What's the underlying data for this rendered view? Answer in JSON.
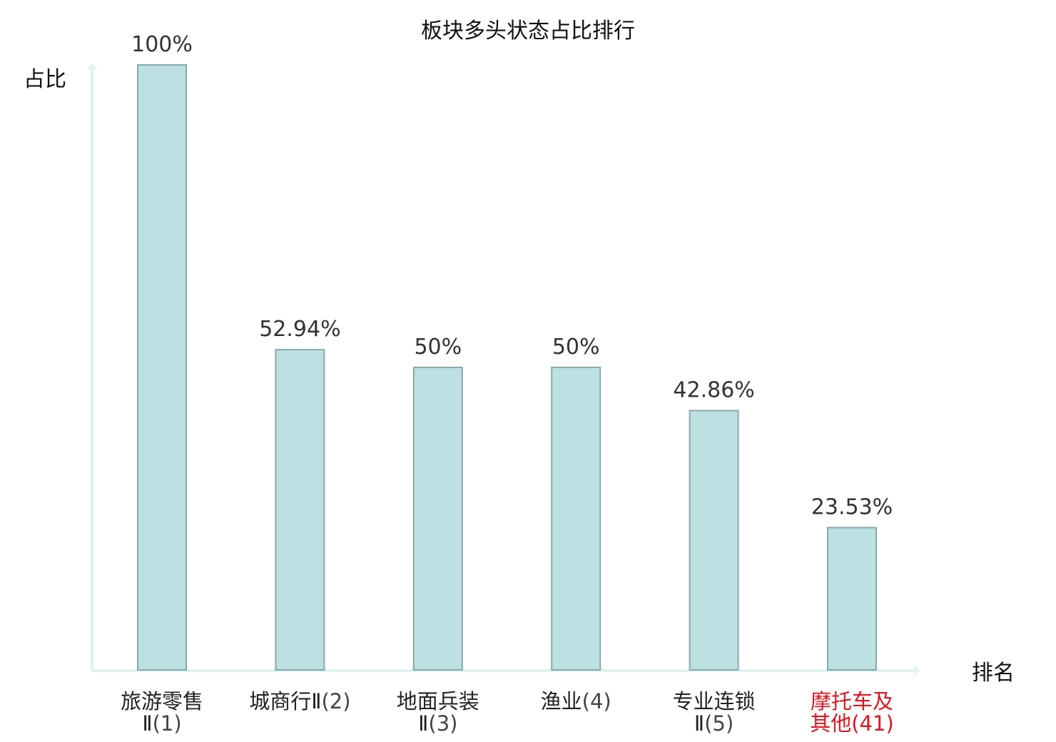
{
  "chart_data": {
    "type": "bar",
    "title": "板块多头状态占比排行",
    "ylabel": "占比",
    "xlabel": "排名",
    "ylim": [
      0,
      100
    ],
    "grid": false,
    "colors": {
      "bar_fill": "#bde0e3",
      "bar_stroke": "#88a8ab",
      "axis": "#dff2ef",
      "label_default": "#222222",
      "rank_default": "#444444",
      "highlight": "#e0141d"
    },
    "categories": [
      {
        "name_lines": [
          "旅游零售",
          "Ⅱ"
        ],
        "rank": "(1)",
        "highlight": false
      },
      {
        "name_lines": [
          "城商行Ⅱ"
        ],
        "rank": "(2)",
        "highlight": false
      },
      {
        "name_lines": [
          "地面兵装",
          "Ⅱ"
        ],
        "rank": "(3)",
        "highlight": false
      },
      {
        "name_lines": [
          "渔业"
        ],
        "rank": "(4)",
        "highlight": false
      },
      {
        "name_lines": [
          "专业连锁",
          "Ⅱ"
        ],
        "rank": "(5)",
        "highlight": false
      },
      {
        "name_lines": [
          "摩托车及",
          "其他"
        ],
        "rank": "(41)",
        "highlight": true
      }
    ],
    "values": [
      100,
      52.94,
      50,
      50,
      42.86,
      23.53
    ],
    "value_labels": [
      "100%",
      "52.94%",
      "50%",
      "50%",
      "42.86%",
      "23.53%"
    ]
  }
}
